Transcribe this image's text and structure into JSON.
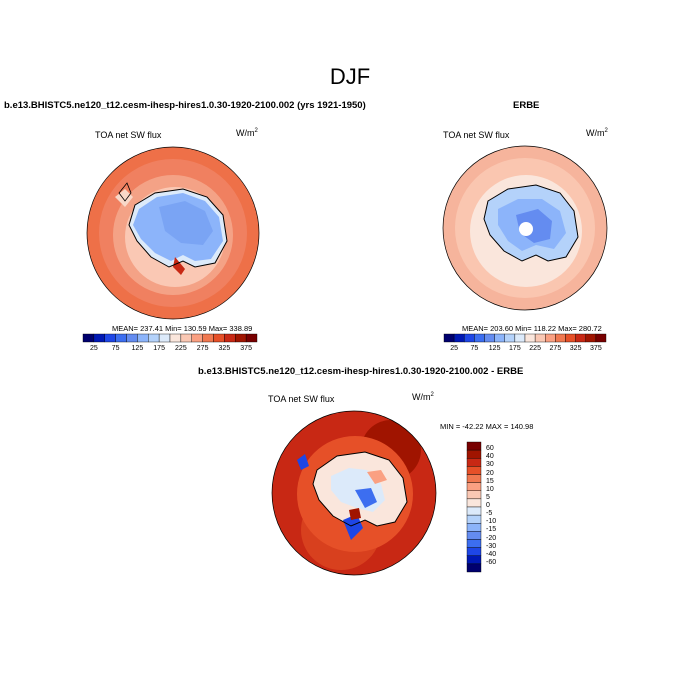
{
  "title": "DJF",
  "top_left": {
    "case": "b.e13.BHISTC5.ne120_t12.cesm-ihesp-hires1.0.30-1920-2100.002 (yrs 1921-1950)",
    "var": "TOA net SW flux",
    "units": "W/m",
    "units_sup": "2",
    "stats": "MEAN= 237.41  Min= 130.59  Max= 338.89"
  },
  "top_right": {
    "case": "ERBE",
    "var": "TOA net SW flux",
    "units": "W/m",
    "units_sup": "2",
    "stats": "MEAN= 203.60  Min= 118.22  Max= 280.72"
  },
  "bottom": {
    "case": "b.e13.BHISTC5.ne120_t12.cesm-ihesp-hires1.0.30-1920-2100.002 - ERBE",
    "var": "TOA net SW flux",
    "units": "W/m",
    "units_sup": "2",
    "stats": "MIN = -42.22  MAX = 140.98"
  },
  "colorbar_abs": {
    "labels": [
      "25",
      "75",
      "125",
      "175",
      "225",
      "275",
      "325",
      "375"
    ],
    "colors": [
      "#00006e",
      "#0018b4",
      "#1e46e6",
      "#3c6ef0",
      "#648cf0",
      "#8cb4fa",
      "#b4d2fa",
      "#dceafa",
      "#fae6dc",
      "#fac8b4",
      "#faa082",
      "#f07850",
      "#e65028",
      "#c82814",
      "#a01400",
      "#780000"
    ]
  },
  "colorbar_diff": {
    "labels": [
      "60",
      "40",
      "30",
      "20",
      "15",
      "10",
      "5",
      "0",
      "-5",
      "-10",
      "-15",
      "-20",
      "-30",
      "-40",
      "-60"
    ],
    "colors": [
      "#780000",
      "#a01400",
      "#c82814",
      "#e65028",
      "#f07850",
      "#faa082",
      "#fac8b4",
      "#fae6dc",
      "#dceafa",
      "#b4d2fa",
      "#8cb4fa",
      "#648cf0",
      "#3c6ef0",
      "#1e46e6",
      "#0018b4",
      "#00006e"
    ]
  }
}
